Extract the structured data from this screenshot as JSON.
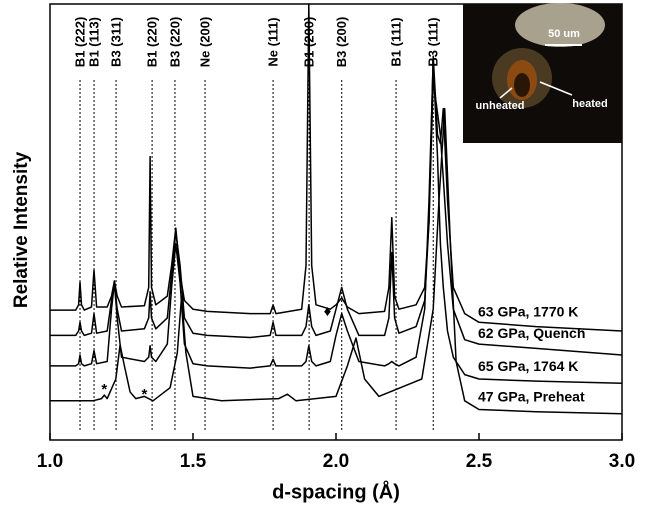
{
  "chart_data": {
    "type": "line",
    "xlabel": "d-spacing (Å)",
    "ylabel": "Relative Intensity",
    "xlim": [
      1.0,
      3.0
    ],
    "xticks": [
      {
        "value": 1.0,
        "label": "1.0"
      },
      {
        "value": 1.5,
        "label": "1.5"
      },
      {
        "value": 2.0,
        "label": "2.0"
      },
      {
        "value": 2.5,
        "label": "2.5"
      },
      {
        "value": 3.0,
        "label": "3.0"
      }
    ],
    "ylim": [
      0,
      100
    ],
    "series": [
      {
        "name": "63 GPa, 1770 K",
        "color": "#000000",
        "x": [
          1.0,
          1.09,
          1.1,
          1.105,
          1.11,
          1.12,
          1.145,
          1.154,
          1.163,
          1.2,
          1.215,
          1.225,
          1.235,
          1.25,
          1.33,
          1.345,
          1.35,
          1.355,
          1.37,
          1.41,
          1.425,
          1.44,
          1.455,
          1.47,
          1.5,
          1.55,
          1.7,
          1.77,
          1.78,
          1.79,
          1.88,
          1.895,
          1.905,
          1.915,
          1.93,
          1.98,
          2.0,
          2.02,
          2.04,
          2.08,
          2.17,
          2.185,
          2.195,
          2.205,
          2.22,
          2.28,
          2.31,
          2.325,
          2.34,
          2.355,
          2.365,
          2.375,
          2.39,
          2.41,
          2.45,
          2.5,
          2.7,
          3.0
        ],
        "values": [
          29.8,
          29.8,
          31,
          36.2,
          31,
          29.8,
          30.5,
          39,
          30.5,
          30.5,
          33,
          36.5,
          33,
          30.5,
          30.8,
          35,
          65,
          35,
          31,
          33,
          40,
          48.6,
          38,
          32,
          30,
          29.5,
          29,
          29,
          31,
          29,
          30,
          40,
          100,
          40,
          31,
          30,
          31,
          32.6,
          30.5,
          29,
          29.5,
          35,
          51,
          33,
          30,
          31,
          35,
          50,
          88,
          70,
          68,
          76,
          55,
          35,
          29,
          27,
          26,
          25
        ]
      },
      {
        "name": "62 GPa, Quench",
        "color": "#000000",
        "x": [
          1.0,
          1.09,
          1.1,
          1.105,
          1.11,
          1.12,
          1.145,
          1.154,
          1.163,
          1.2,
          1.215,
          1.225,
          1.235,
          1.25,
          1.33,
          1.345,
          1.35,
          1.355,
          1.37,
          1.41,
          1.425,
          1.44,
          1.455,
          1.47,
          1.5,
          1.55,
          1.7,
          1.77,
          1.78,
          1.79,
          1.88,
          1.895,
          1.905,
          1.915,
          1.93,
          1.98,
          2.0,
          2.02,
          2.04,
          2.08,
          2.17,
          2.185,
          2.195,
          2.205,
          2.22,
          2.28,
          2.31,
          2.325,
          2.34,
          2.355,
          2.365,
          2.375,
          2.39,
          2.41,
          2.45,
          2.5,
          2.7,
          3.0
        ],
        "values": [
          24,
          24,
          25,
          27,
          25,
          24,
          24.5,
          29,
          24.5,
          25,
          32,
          36,
          30,
          25,
          25.5,
          28,
          34,
          28,
          25.5,
          28,
          38,
          47.7,
          40,
          28,
          24.5,
          24,
          23.5,
          24,
          27,
          24,
          24,
          26,
          31,
          26,
          24,
          25,
          30,
          35,
          30,
          24,
          24,
          28,
          43,
          28,
          24.5,
          26,
          32,
          50,
          82.5,
          75,
          70,
          60,
          45,
          30,
          23,
          22,
          21,
          19.5
        ]
      },
      {
        "name": "65 GPa, 1764 K",
        "color": "#000000",
        "x": [
          1.0,
          1.09,
          1.1,
          1.105,
          1.11,
          1.12,
          1.145,
          1.154,
          1.163,
          1.2,
          1.215,
          1.225,
          1.235,
          1.25,
          1.33,
          1.345,
          1.35,
          1.355,
          1.37,
          1.41,
          1.425,
          1.44,
          1.455,
          1.47,
          1.5,
          1.55,
          1.7,
          1.77,
          1.78,
          1.79,
          1.88,
          1.895,
          1.905,
          1.915,
          1.93,
          1.98,
          2.0,
          2.02,
          2.04,
          2.08,
          2.17,
          2.185,
          2.195,
          2.205,
          2.22,
          2.28,
          2.31,
          2.325,
          2.34,
          2.355,
          2.365,
          2.375,
          2.39,
          2.41,
          2.45,
          2.5,
          2.7,
          3.0
        ],
        "values": [
          17,
          17,
          17.5,
          19.5,
          17.5,
          17,
          17.5,
          20.5,
          17.5,
          18,
          30,
          36,
          28,
          19,
          18,
          19,
          21.6,
          19,
          18,
          22,
          35,
          45,
          36,
          22,
          17.5,
          17,
          16.5,
          17,
          18.5,
          17,
          17,
          18,
          21.6,
          18,
          17,
          18,
          24,
          29,
          25,
          18,
          17,
          17.5,
          18,
          17.5,
          17,
          19,
          30,
          55,
          87,
          65,
          45,
          35,
          25,
          19,
          15,
          14,
          13.5,
          13
        ]
      },
      {
        "name": "47 GPa, Preheat",
        "color": "#000000",
        "x": [
          1.0,
          1.15,
          1.18,
          1.19,
          1.2,
          1.23,
          1.245,
          1.26,
          1.28,
          1.3,
          1.33,
          1.36,
          1.42,
          1.445,
          1.46,
          1.475,
          1.5,
          1.6,
          1.8,
          1.83,
          1.86,
          2.0,
          2.04,
          2.07,
          2.1,
          2.15,
          2.3,
          2.34,
          2.36,
          2.38,
          2.4,
          2.42,
          2.45,
          2.5,
          2.7,
          3.0
        ],
        "values": [
          9,
          9,
          9.5,
          10.3,
          9.5,
          14,
          21.8,
          17,
          11,
          9.5,
          10,
          9,
          12,
          20,
          33,
          20,
          10,
          9,
          9.5,
          10.5,
          9,
          10,
          17,
          23.4,
          14,
          10,
          14,
          30,
          55,
          76,
          45,
          18,
          9,
          7,
          6.5,
          6
        ]
      }
    ],
    "reference_lines": [
      {
        "label": "B1 (222)",
        "x": 1.105
      },
      {
        "label": "B1 (113)",
        "x": 1.154
      },
      {
        "label": "B3 (311)",
        "x": 1.231
      },
      {
        "label": "B1 (220)",
        "x": 1.357
      },
      {
        "label": "B3 (220)",
        "x": 1.437
      },
      {
        "label": "Ne (200)",
        "x": 1.542
      },
      {
        "label": "Ne (111)",
        "x": 1.78
      },
      {
        "label": "B1 (200)",
        "x": 1.906
      },
      {
        "label": "B3 (200)",
        "x": 2.02
      },
      {
        "label": "B1 (111)",
        "x": 2.21
      },
      {
        "label": "B3 (111)",
        "x": 2.34
      }
    ],
    "annotations": [
      {
        "text": "*",
        "x": 1.19,
        "y": 11.5
      },
      {
        "text": "*",
        "x": 1.33,
        "y": 10.3
      },
      {
        "text": "♦",
        "x": 1.97,
        "y": 29.4
      }
    ],
    "inset": {
      "scale_label": "50 um",
      "labels": [
        "unheated",
        "heated"
      ]
    }
  }
}
